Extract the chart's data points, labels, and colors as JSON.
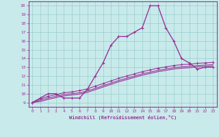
{
  "xlabel": "Windchill (Refroidissement éolien,°C)",
  "background_color": "#c8eaea",
  "grid_color": "#99cccc",
  "line_color": "#993399",
  "xlim": [
    -0.5,
    23.5
  ],
  "ylim": [
    8.5,
    20.5
  ],
  "xticks": [
    0,
    1,
    2,
    3,
    4,
    5,
    6,
    7,
    8,
    9,
    10,
    11,
    12,
    13,
    14,
    15,
    16,
    17,
    18,
    19,
    20,
    21,
    22,
    23
  ],
  "yticks": [
    9,
    10,
    11,
    12,
    13,
    14,
    15,
    16,
    17,
    18,
    19,
    20
  ],
  "lines": [
    {
      "x": [
        0,
        1,
        2,
        3,
        4,
        5,
        6,
        7,
        8,
        9,
        10,
        11,
        12,
        13,
        14,
        15,
        16,
        17,
        18,
        19,
        20,
        21,
        22,
        23
      ],
      "y": [
        9,
        9.5,
        10,
        10,
        9.5,
        9.5,
        9.5,
        10.5,
        12,
        13.5,
        15.5,
        16.5,
        16.5,
        17,
        17.5,
        20,
        20,
        17.5,
        16,
        14,
        13.5,
        12.8,
        13,
        13
      ],
      "marker": true,
      "lw": 1.0
    },
    {
      "x": [
        0,
        1,
        2,
        3,
        4,
        5,
        6,
        7,
        8,
        9,
        10,
        11,
        12,
        13,
        14,
        15,
        16,
        17,
        18,
        19,
        20,
        21,
        22,
        23
      ],
      "y": [
        9,
        9.4,
        9.7,
        9.9,
        10.1,
        10.2,
        10.35,
        10.55,
        10.85,
        11.15,
        11.45,
        11.75,
        12.0,
        12.25,
        12.5,
        12.7,
        12.9,
        13.05,
        13.2,
        13.3,
        13.35,
        13.45,
        13.5,
        13.55
      ],
      "marker": true,
      "lw": 0.8
    },
    {
      "x": [
        0,
        1,
        2,
        3,
        4,
        5,
        6,
        7,
        8,
        9,
        10,
        11,
        12,
        13,
        14,
        15,
        16,
        17,
        18,
        19,
        20,
        21,
        22,
        23
      ],
      "y": [
        9,
        9.25,
        9.5,
        9.7,
        9.9,
        10.0,
        10.1,
        10.3,
        10.6,
        10.9,
        11.2,
        11.5,
        11.75,
        12.0,
        12.25,
        12.45,
        12.65,
        12.8,
        12.95,
        13.05,
        13.1,
        13.2,
        13.25,
        13.3
      ],
      "marker": false,
      "lw": 0.8
    },
    {
      "x": [
        0,
        1,
        2,
        3,
        4,
        5,
        6,
        7,
        8,
        9,
        10,
        11,
        12,
        13,
        14,
        15,
        16,
        17,
        18,
        19,
        20,
        21,
        22,
        23
      ],
      "y": [
        9,
        9.1,
        9.35,
        9.55,
        9.75,
        9.85,
        9.95,
        10.15,
        10.45,
        10.75,
        11.05,
        11.35,
        11.6,
        11.85,
        12.1,
        12.3,
        12.5,
        12.65,
        12.8,
        12.9,
        12.95,
        13.05,
        13.1,
        13.15
      ],
      "marker": false,
      "lw": 0.8
    }
  ]
}
